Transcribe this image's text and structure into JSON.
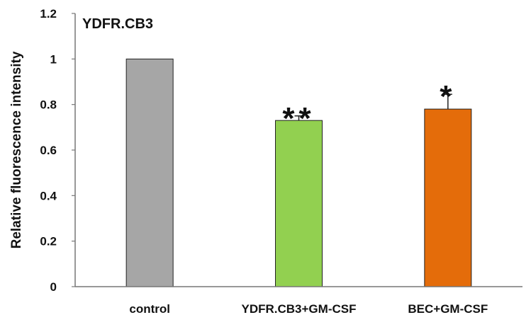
{
  "chart_data": {
    "type": "bar",
    "title": "YDFR.CB3",
    "xlabel": "",
    "ylabel": "Relative fluorescence intensity",
    "ylim": [
      0,
      1.2
    ],
    "yticks": [
      "0",
      "0.2",
      "0.4",
      "0.6",
      "0.8",
      "1",
      "1.2"
    ],
    "categories": [
      "control",
      "YDFR.CB3+GM-CSF",
      "BEC+GM-CSF"
    ],
    "values": [
      1.0,
      0.73,
      0.78
    ],
    "errors": [
      0,
      0.02,
      0.065
    ],
    "colors": [
      "#a6a6a6",
      "#92d050",
      "#e46c0a"
    ],
    "significance": [
      "",
      "**",
      "*"
    ],
    "grid": false,
    "legend": "none"
  }
}
